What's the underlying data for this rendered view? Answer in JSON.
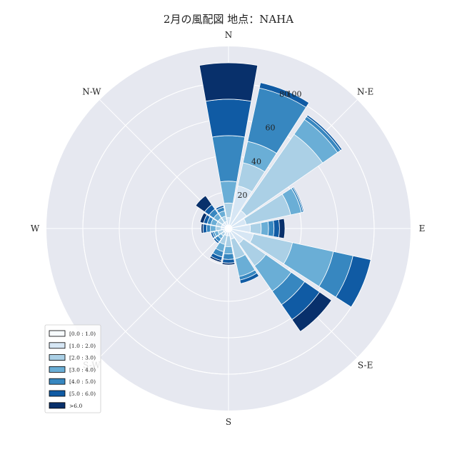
{
  "title": "2月の風配図 地点：NAHA",
  "chart_data": {
    "type": "windrose",
    "title": "2月の風配図 地点：NAHA",
    "directions": [
      "N",
      "NNE",
      "NE",
      "ENE",
      "E",
      "ESE",
      "SE",
      "SSE",
      "S",
      "SSW",
      "SW",
      "WSW",
      "W",
      "WNW",
      "NW",
      "NNW"
    ],
    "direction_labels": [
      "N",
      "N-E",
      "E",
      "S-E",
      "S",
      "S-W",
      "W",
      "N-W"
    ],
    "radial_ticks": [
      20,
      40,
      60,
      80,
      100
    ],
    "rmax": 100,
    "legend_placement": "lower-left",
    "series": [
      {
        "name": "[0.0 : 1.0)",
        "color": "#f7fbff",
        "values": [
          2,
          2,
          2,
          2,
          2,
          2,
          2,
          2,
          2,
          2,
          2,
          2,
          2,
          2,
          2,
          2
        ]
      },
      {
        "name": "[1.0 : 2.0)",
        "color": "#d6e6f4",
        "values": [
          4,
          22,
          10,
          8,
          10,
          12,
          8,
          4,
          2,
          2,
          1,
          1,
          2,
          2,
          2,
          2
        ]
      },
      {
        "name": "[2.0 : 3.0)",
        "color": "#abd0e6",
        "values": [
          8,
          13,
          51,
          25,
          6,
          22,
          15,
          11,
          6,
          5,
          2,
          3,
          3,
          3,
          3,
          3
        ]
      },
      {
        "name": "[3.0 : 4.0)",
        "color": "#6aaed6",
        "values": [
          12,
          12,
          10,
          6,
          4,
          23,
          17,
          10,
          4,
          4,
          2,
          2,
          3,
          3,
          3,
          3
        ]
      },
      {
        "name": "[4.0 : 5.0)",
        "color": "#3787c0",
        "values": [
          25,
          30,
          2,
          1,
          3,
          11,
          9,
          2,
          3,
          3,
          2,
          1,
          2,
          2,
          3,
          2
        ]
      },
      {
        "name": "[5.0 : 6.0)",
        "color": "#105ba4",
        "values": [
          20,
          3,
          1,
          0.5,
          3,
          10,
          10,
          2,
          2,
          2,
          1,
          1,
          2,
          2,
          3,
          1
        ]
      },
      {
        "name": ">6.0",
        "color": "#08306b",
        "values": [
          20,
          0,
          0,
          0,
          3,
          0,
          8,
          0,
          1,
          1,
          0,
          0,
          1,
          2,
          6,
          0
        ]
      }
    ]
  }
}
